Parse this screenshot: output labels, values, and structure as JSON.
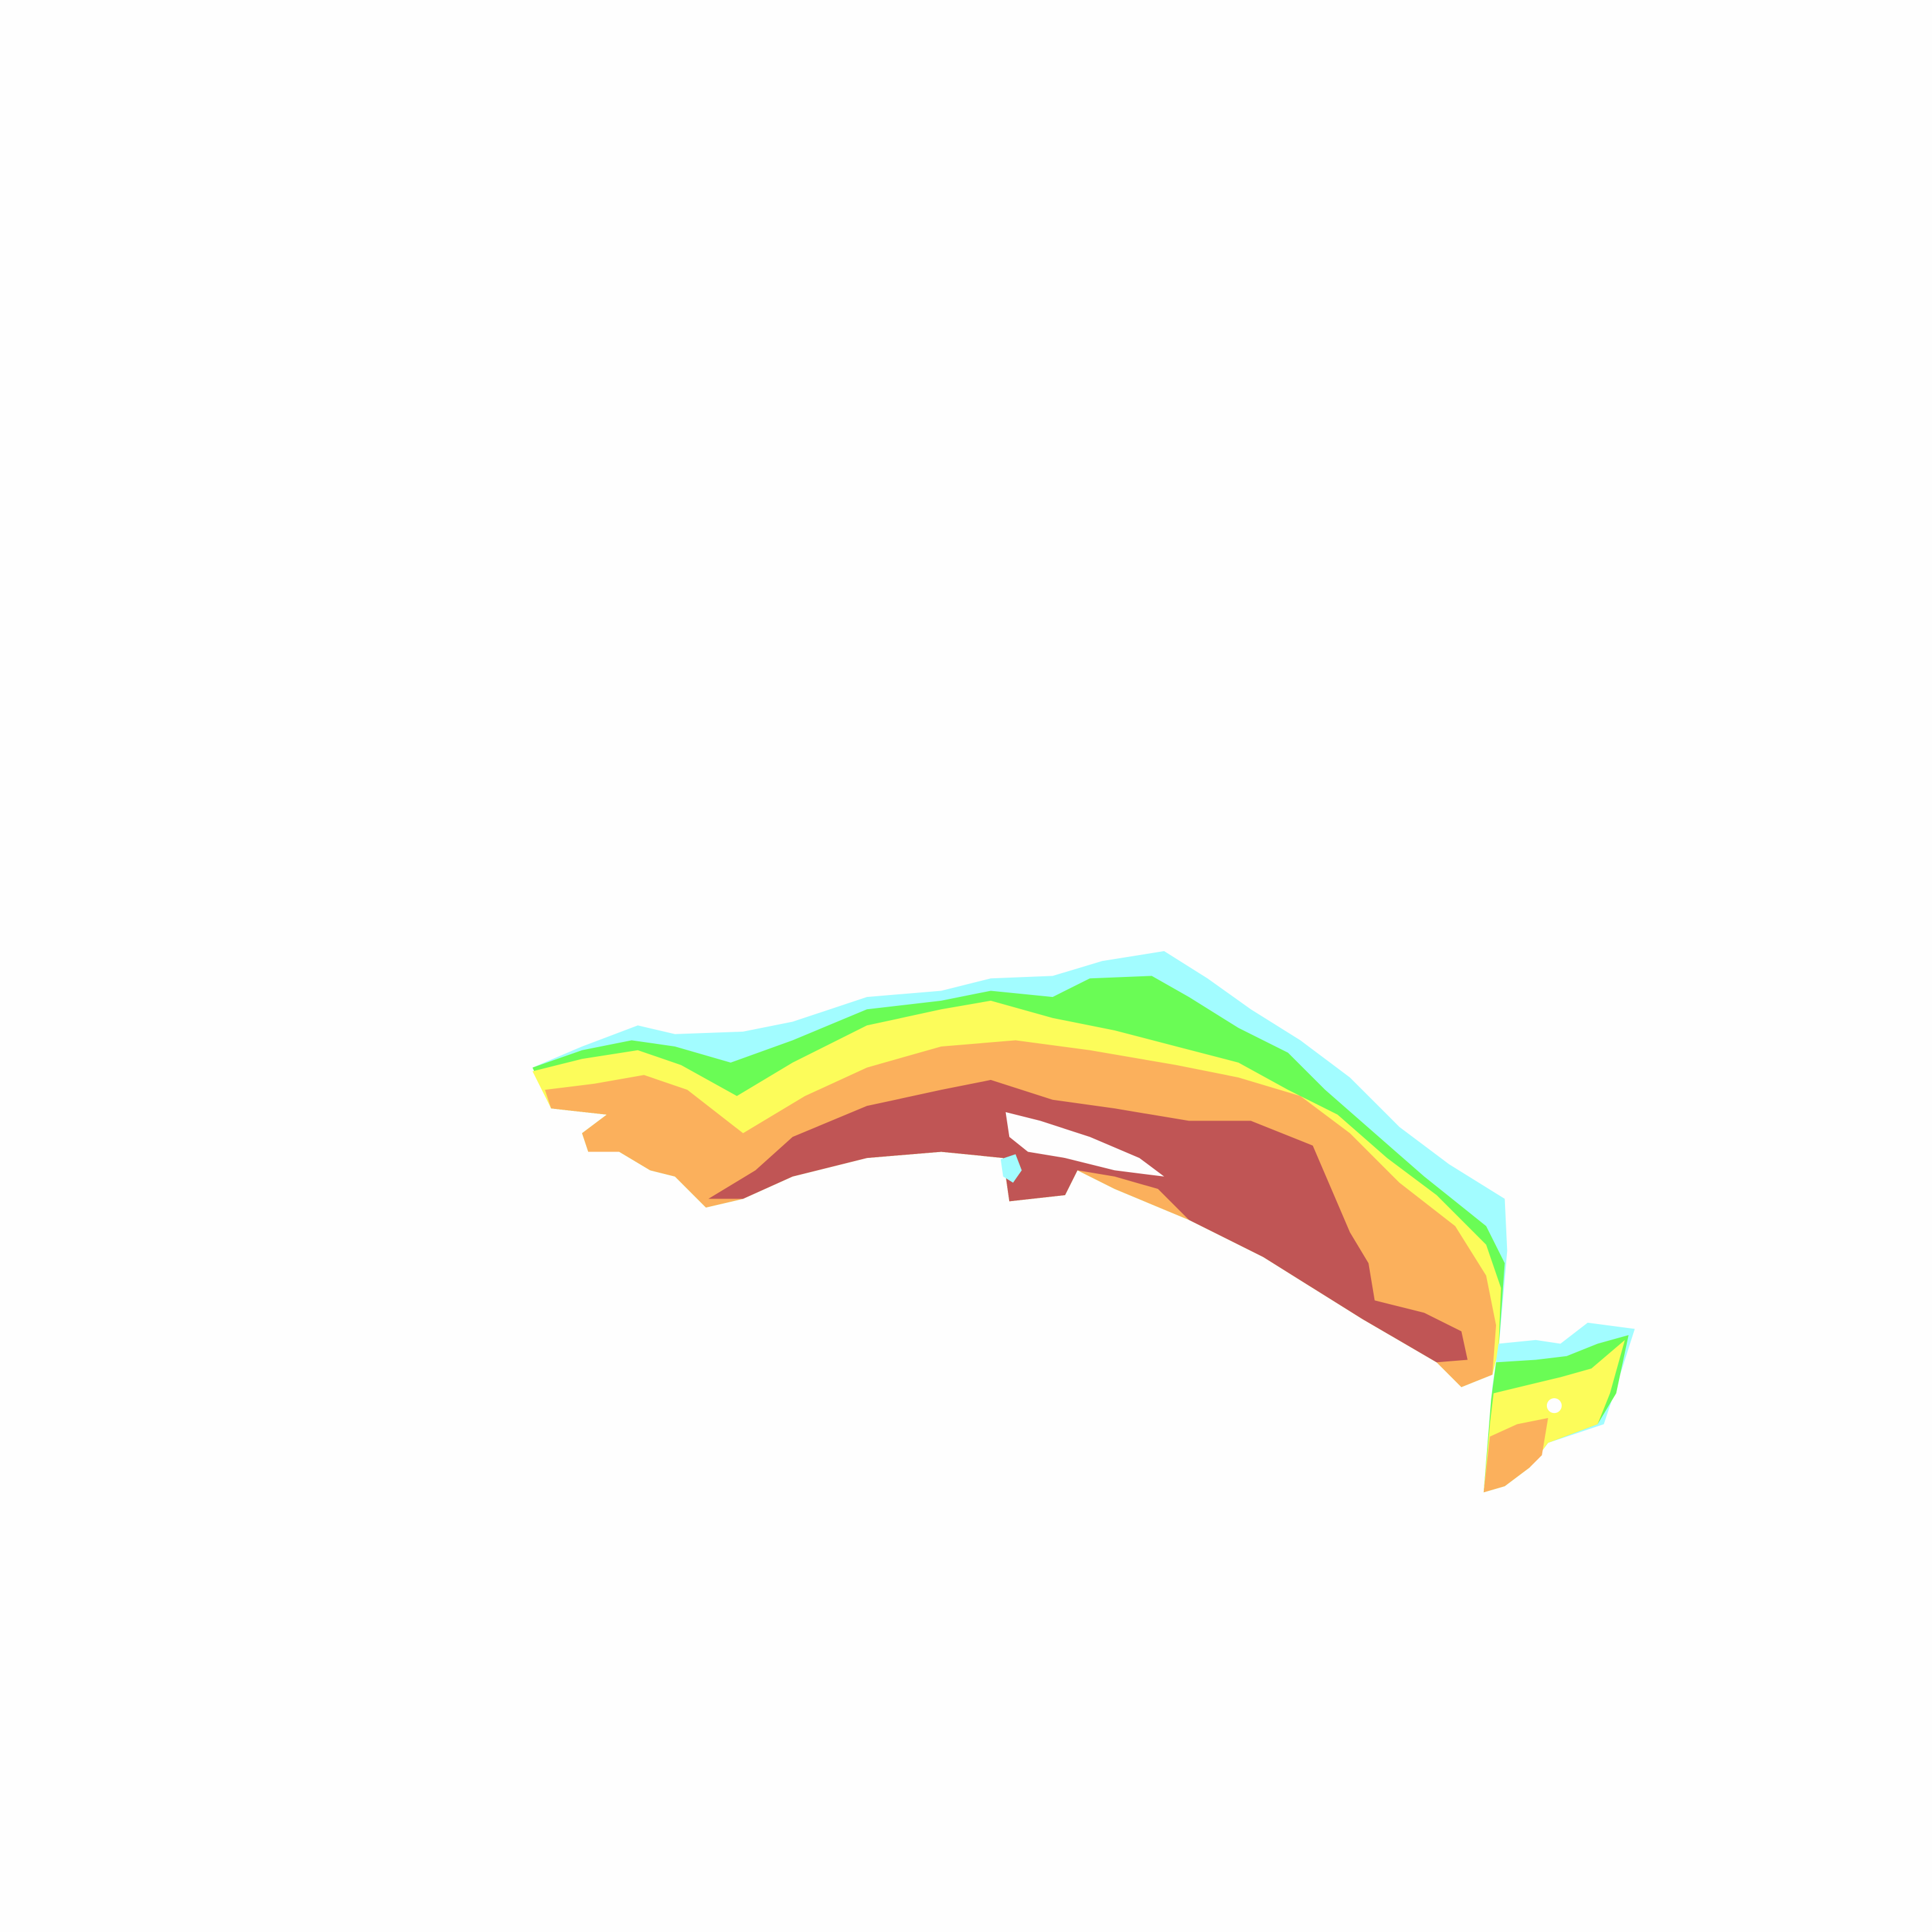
{
  "map": {
    "background": "#fefefe",
    "zone_colors": {
      "cyan": "#a2fcff",
      "green": "#6afc55",
      "yellow": "#fcfc5a",
      "orange": "#fbb05c",
      "red": "#c05555"
    }
  }
}
